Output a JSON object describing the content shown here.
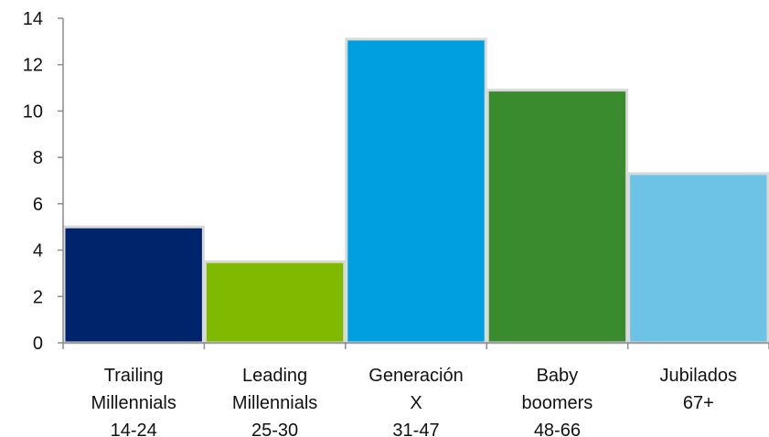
{
  "chart_data": {
    "type": "bar",
    "categories": [
      [
        "Trailing",
        "Millennials",
        "14-24"
      ],
      [
        "Leading",
        "Millennials",
        "25-30"
      ],
      [
        "Generación",
        "X",
        "31-47"
      ],
      [
        "Baby",
        "boomers",
        "48-66"
      ],
      [
        "Jubilados",
        "67+"
      ]
    ],
    "values": [
      5.0,
      3.5,
      13.1,
      10.9,
      7.3
    ],
    "colors": [
      "#00246b",
      "#7fba00",
      "#009fdf",
      "#3a8a2e",
      "#6cc3e6"
    ],
    "title": "",
    "xlabel": "",
    "ylabel": "",
    "ylim": [
      0,
      14
    ],
    "yticks": [
      0,
      2,
      4,
      6,
      8,
      10,
      12,
      14
    ],
    "grid": false,
    "legend": "none"
  }
}
